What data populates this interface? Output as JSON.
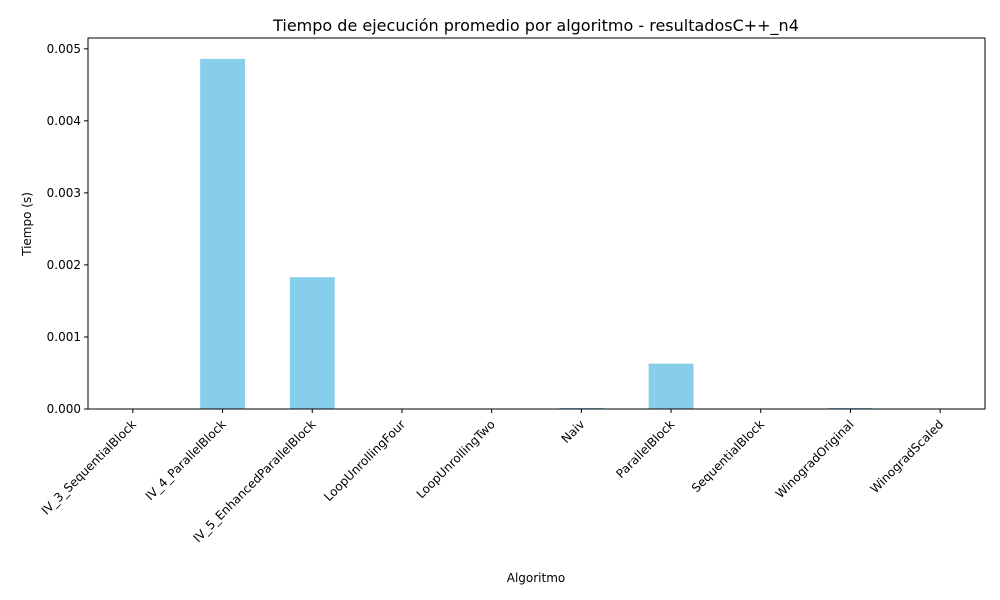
{
  "chart_data": {
    "type": "bar",
    "title": "Tiempo de ejecución promedio por algoritmo - resultadosC++_n4",
    "xlabel": "Algoritmo",
    "ylabel": "Tiempo (s)",
    "categories": [
      "IV_3_SequentialBlock",
      "IV_4_ParallelBlock",
      "IV_5_EnhancedParallelBlock",
      "LoopUnrollingFour",
      "LoopUnrollingTwo",
      "Naiv",
      "ParallelBlock",
      "SequentialBlock",
      "WinogradOriginal",
      "WinogradScaled"
    ],
    "values": [
      2e-06,
      0.00486,
      0.00183,
      2e-06,
      2e-06,
      1.5e-05,
      0.00063,
      2e-06,
      1.5e-05,
      2e-06
    ],
    "ylim": [
      0,
      0.00515
    ],
    "yticks": [
      "0.000",
      "0.001",
      "0.002",
      "0.003",
      "0.004",
      "0.005"
    ],
    "ytick_values": [
      0,
      0.001,
      0.002,
      0.003,
      0.004,
      0.005
    ],
    "bar_color": "#87ceeb",
    "grid": false,
    "legend": "none"
  }
}
